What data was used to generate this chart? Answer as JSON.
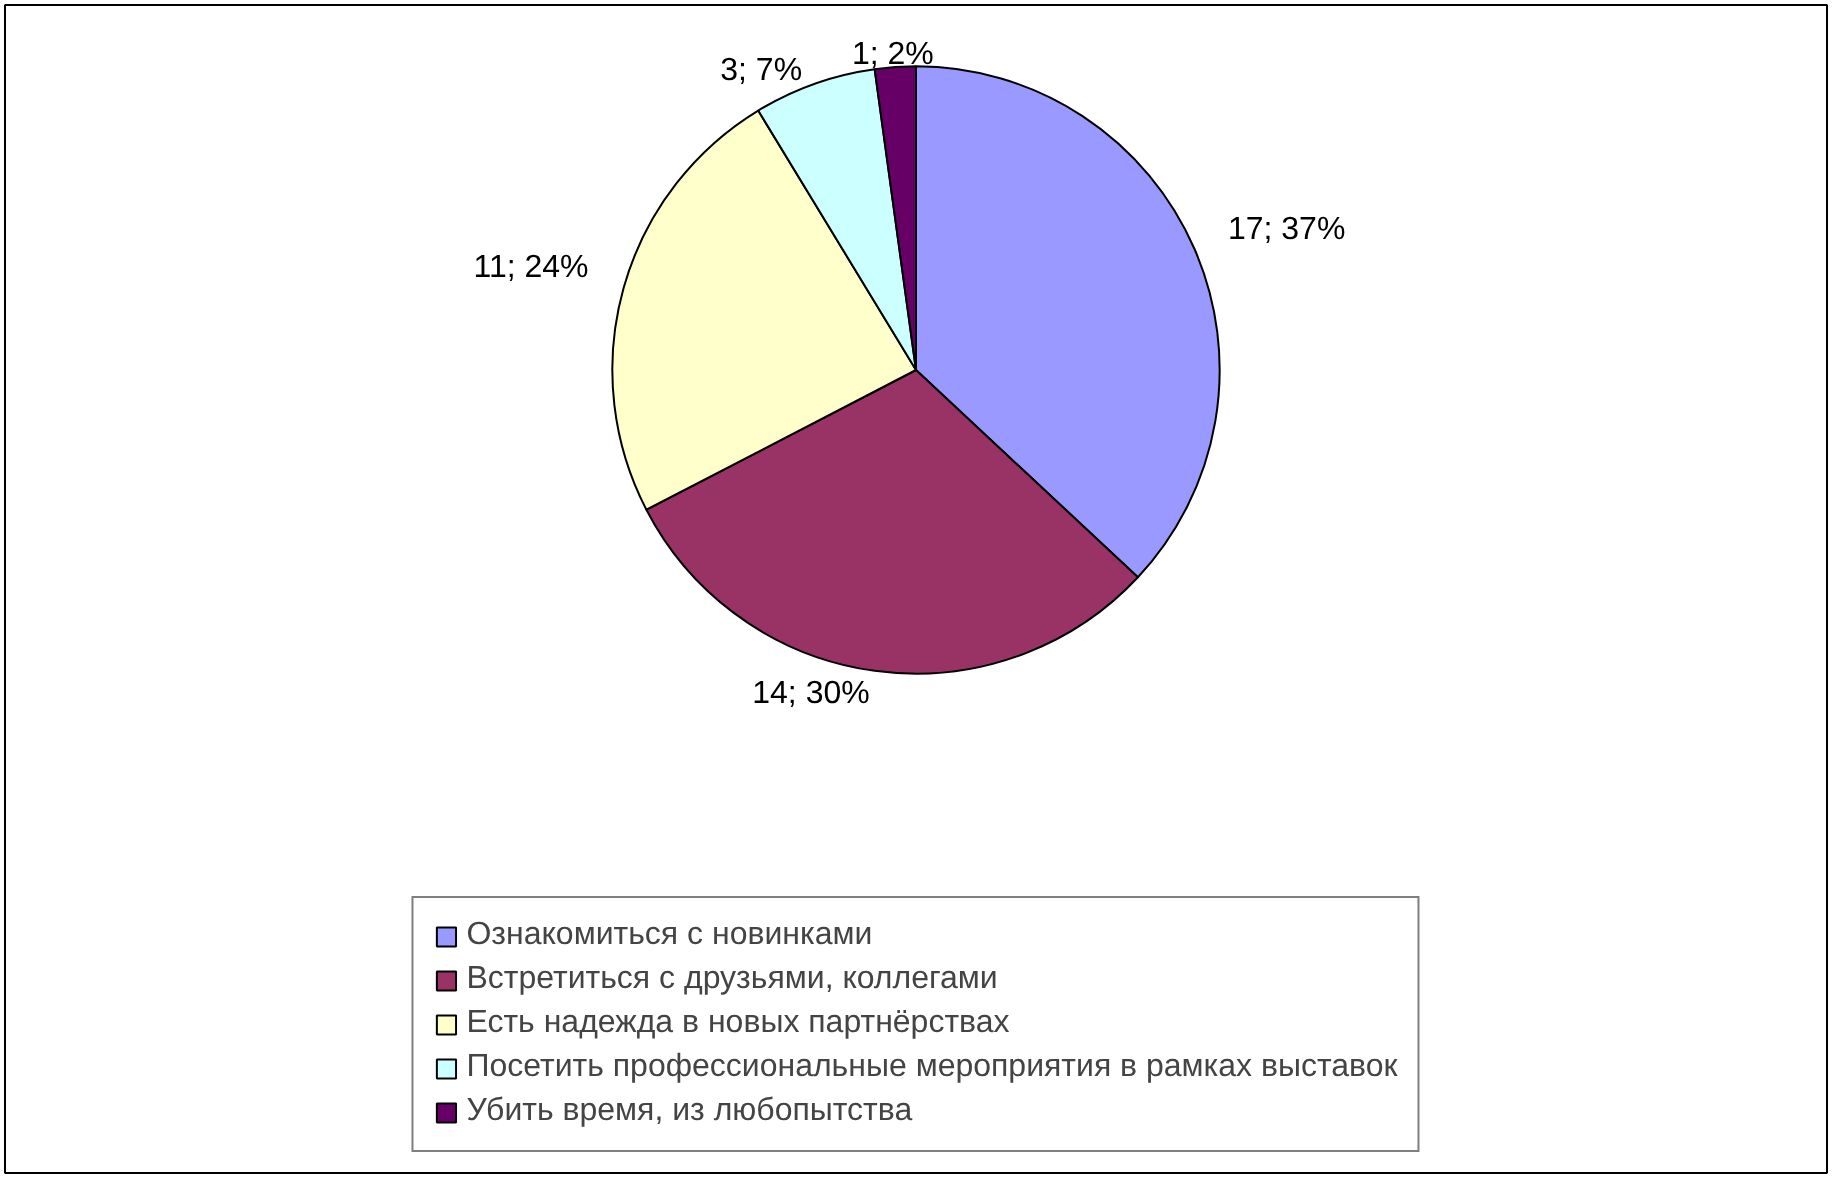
{
  "chart_data": {
    "type": "pie",
    "categories": [
      "Ознакомиться с новинками",
      "Встретиться с друзьями, коллегами",
      "Есть надежда в новых партнёрствах",
      "Посетить профессиональные мероприятия в рамках выставок",
      "Убить время, из любопытства"
    ],
    "values": [
      17,
      14,
      11,
      3,
      1
    ],
    "colors": [
      "#9999ff",
      "#993366",
      "#ffffcc",
      "#ccffff",
      "#660066"
    ],
    "value_labels": [
      "17; 37%",
      "14; 30%",
      "11; 24%",
      "3; 7%",
      "1; 2%"
    ],
    "legend": "bottom"
  }
}
